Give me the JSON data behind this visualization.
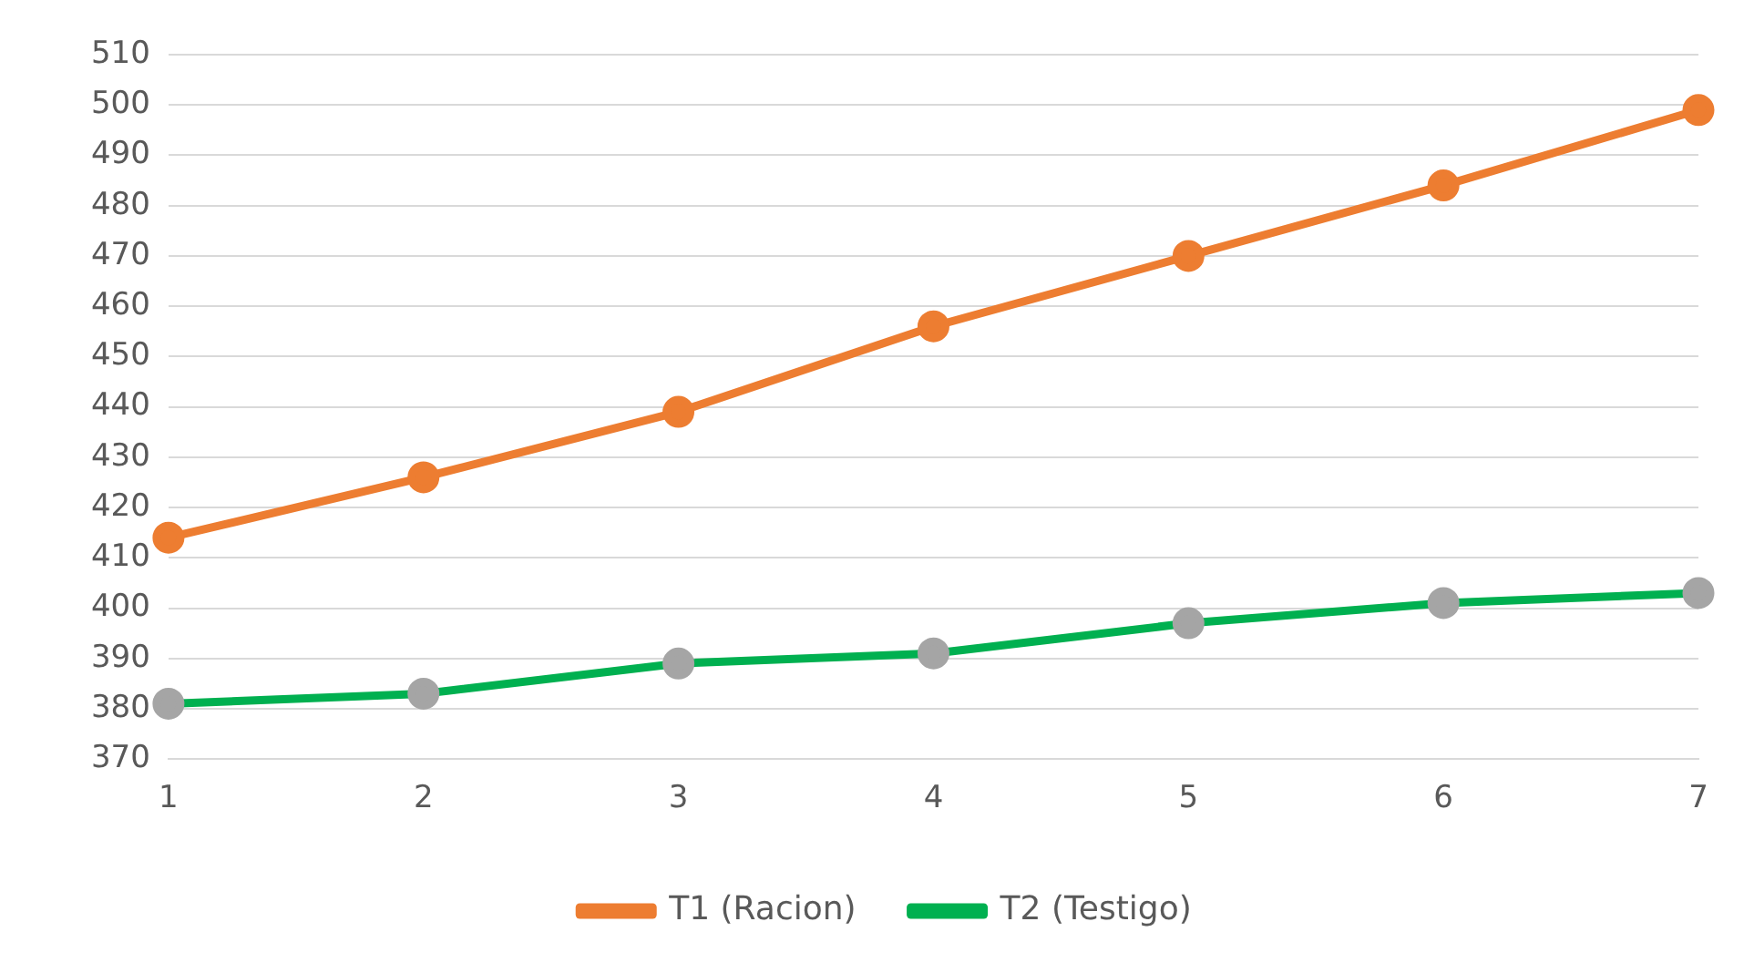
{
  "chart_data": {
    "type": "line",
    "categories": [
      "1",
      "2",
      "3",
      "4",
      "5",
      "6",
      "7"
    ],
    "series": [
      {
        "name": "T1 (Racion)",
        "color": "#ed7d31",
        "colors": [
          "#ed7d31",
          "#ed7d31",
          "#ed7d31",
          "#ed7d31",
          "#ed7d31",
          "#ed7d31",
          "#ed7d31"
        ],
        "values": [
          414,
          426,
          439,
          456,
          470,
          484,
          499
        ]
      },
      {
        "name": "T2 (Testigo)",
        "color": "#00b050",
        "colors": [
          "#a5a5a5",
          "#a5a5a5",
          "#a5a5a5",
          "#a5a5a5",
          "#a5a5a5",
          "#a5a5a5",
          "#a5a5a5"
        ],
        "values": [
          381,
          383,
          389,
          391,
          397,
          401,
          403
        ]
      }
    ],
    "ylim": [
      370,
      510
    ],
    "yticks": [
      370,
      380,
      390,
      400,
      410,
      420,
      430,
      440,
      450,
      460,
      470,
      480,
      490,
      500,
      510
    ],
    "grid": "y",
    "legend": "bottom",
    "marker": "circle",
    "line_style": "solid"
  }
}
